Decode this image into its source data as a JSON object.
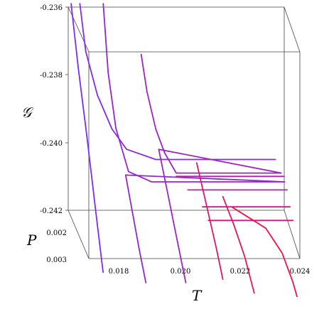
{
  "chart_data": {
    "type": "line",
    "projection": "3d",
    "axes": {
      "x": {
        "label": "T",
        "ticks": [
          "0.018",
          "0.020",
          "0.022",
          "0.024"
        ]
      },
      "y": {
        "label": "P",
        "ticks": [
          "0.002",
          "0.003"
        ]
      },
      "z": {
        "label": "𝒢",
        "ticks": [
          "-0.236",
          "-0.238",
          "-0.240",
          "-0.242"
        ]
      }
    },
    "colors": {
      "start": "#7b2cf2",
      "end": "#f0124a"
    },
    "series": [
      {
        "index": 0,
        "points": [
          [
            0.0167,
            0.002,
            -0.2359
          ],
          [
            0.0168,
            0.0022,
            -0.2375
          ],
          [
            0.0169,
            0.0025,
            -0.2392
          ],
          [
            0.017,
            0.0028,
            -0.241
          ],
          [
            0.0171,
            0.003,
            -0.2424
          ]
        ]
      },
      {
        "index": 1,
        "points": [
          [
            0.017,
            0.002,
            -0.2359
          ],
          [
            0.0172,
            0.002,
            -0.2373
          ],
          [
            0.0176,
            0.002,
            -0.2386
          ],
          [
            0.0181,
            0.002,
            -0.2396
          ],
          [
            0.0186,
            0.002,
            -0.2402
          ],
          [
            0.0196,
            0.002,
            -0.2405
          ],
          [
            0.021,
            0.002,
            -0.2405
          ],
          [
            0.0225,
            0.002,
            -0.2405
          ],
          [
            0.0237,
            0.002,
            -0.2405
          ]
        ]
      },
      {
        "index": 2,
        "points": [
          [
            0.0178,
            0.002,
            -0.2359
          ],
          [
            0.0179,
            0.0021,
            -0.2378
          ],
          [
            0.0181,
            0.0022,
            -0.2393
          ],
          [
            0.0184,
            0.0024,
            -0.2403
          ],
          [
            0.0192,
            0.0024,
            -0.2406
          ],
          [
            0.021,
            0.0024,
            -0.2406
          ],
          [
            0.023,
            0.0024,
            -0.2406
          ],
          [
            0.0238,
            0.0024,
            -0.2406
          ],
          [
            0.0183,
            0.0024,
            -0.2404
          ],
          [
            0.0184,
            0.0026,
            -0.2412
          ],
          [
            0.0185,
            0.0028,
            -0.242
          ],
          [
            0.0186,
            0.003,
            -0.2427
          ]
        ]
      },
      {
        "index": 3,
        "points": [
          [
            0.0191,
            0.002,
            -0.2374
          ],
          [
            0.0193,
            0.002,
            -0.2385
          ],
          [
            0.0196,
            0.002,
            -0.2396
          ],
          [
            0.0199,
            0.002,
            -0.2403
          ],
          [
            0.0203,
            0.002,
            -0.2409
          ],
          [
            0.0212,
            0.002,
            -0.2409
          ],
          [
            0.0225,
            0.002,
            -0.2409
          ],
          [
            0.0239,
            0.002,
            -0.2409
          ],
          [
            0.0197,
            0.002,
            -0.2402
          ],
          [
            0.0198,
            0.0023,
            -0.241
          ],
          [
            0.0199,
            0.0026,
            -0.2418
          ],
          [
            0.02,
            0.003,
            -0.2427
          ]
        ]
      },
      {
        "index": 4,
        "points": [
          [
            0.0203,
            0.002,
            -0.241
          ],
          [
            0.0215,
            0.002,
            -0.241
          ],
          [
            0.023,
            0.002,
            -0.241
          ],
          [
            0.024,
            0.002,
            -0.241
          ]
        ]
      },
      {
        "index": 5,
        "points": [
          [
            0.0207,
            0.002,
            -0.2414
          ],
          [
            0.0225,
            0.002,
            -0.2414
          ],
          [
            0.0241,
            0.002,
            -0.2414
          ]
        ]
      },
      {
        "index": 6,
        "points": [
          [
            0.0212,
            0.002,
            -0.2419
          ],
          [
            0.023,
            0.002,
            -0.2419
          ],
          [
            0.0242,
            0.002,
            -0.2419
          ]
        ]
      },
      {
        "index": 7,
        "points": [
          [
            0.0214,
            0.002,
            -0.2423
          ],
          [
            0.023,
            0.002,
            -0.2423
          ],
          [
            0.0243,
            0.002,
            -0.2423
          ]
        ]
      },
      {
        "index": 8,
        "points": [
          [
            0.021,
            0.002,
            -0.2406
          ],
          [
            0.0211,
            0.0024,
            -0.2413
          ],
          [
            0.0212,
            0.0028,
            -0.242
          ],
          [
            0.0213,
            0.003,
            -0.2426
          ]
        ]
      },
      {
        "index": 9,
        "points": [
          [
            0.0219,
            0.002,
            -0.2416
          ],
          [
            0.0221,
            0.0023,
            -0.242
          ],
          [
            0.0223,
            0.0026,
            -0.2425
          ],
          [
            0.0224,
            0.003,
            -0.243
          ]
        ]
      },
      {
        "index": 10,
        "points": [
          [
            0.0222,
            0.002,
            -0.2419
          ],
          [
            0.0232,
            0.0023,
            -0.2421
          ],
          [
            0.0236,
            0.0026,
            -0.2424
          ],
          [
            0.0238,
            0.0029,
            -0.2428
          ],
          [
            0.0239,
            0.003,
            -0.2431
          ]
        ]
      }
    ]
  }
}
